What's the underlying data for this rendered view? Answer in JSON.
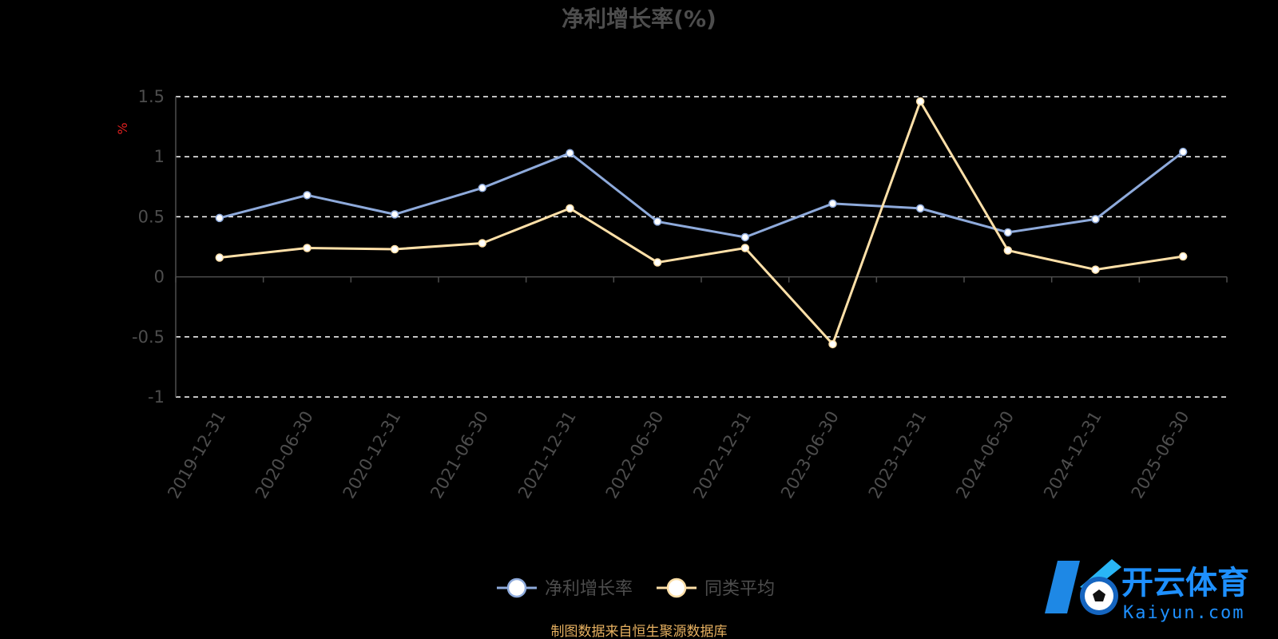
{
  "chart_data": {
    "type": "line",
    "title": "净利增长率(%)",
    "ylabel": "%",
    "ylim": [
      -1,
      1.5
    ],
    "yticks": [
      1.5,
      1,
      0.5,
      0,
      -0.5,
      -1
    ],
    "ytick_labels": [
      "1.5",
      "1",
      "0.5",
      "0",
      "-0.5",
      "-1"
    ],
    "grid": true,
    "legend_position": "bottom-center",
    "categories": [
      "2019-12-31",
      "2020-06-30",
      "2020-12-31",
      "2021-06-30",
      "2021-12-31",
      "2022-06-30",
      "2022-12-31",
      "2023-06-30",
      "2023-12-31",
      "2024-06-30",
      "2024-12-31",
      "2025-06-30"
    ],
    "series": [
      {
        "name": "净利增长率",
        "color": "#8eaadb",
        "values": [
          0.49,
          0.68,
          0.52,
          0.74,
          1.03,
          0.46,
          0.33,
          0.61,
          0.57,
          0.37,
          0.48,
          1.04
        ]
      },
      {
        "name": "同类平均",
        "color": "#ffe0a8",
        "values": [
          0.16,
          0.24,
          0.23,
          0.28,
          0.57,
          0.12,
          0.24,
          -0.56,
          1.46,
          0.22,
          0.06,
          0.17
        ]
      }
    ],
    "colors": {
      "title": "#4d4d4d",
      "axis_text": "#4d4d4d",
      "ylabel": "#e02020",
      "grid": "#ffffff",
      "axis_line": "#4d4d4d",
      "source": "#e6b060"
    },
    "source_note": "制图数据来自恒生聚源数据库"
  },
  "watermark": {
    "text": "开云体育",
    "subtext": "Kaiyun.com",
    "logo_icon": "kaiyun-logo-icon"
  }
}
